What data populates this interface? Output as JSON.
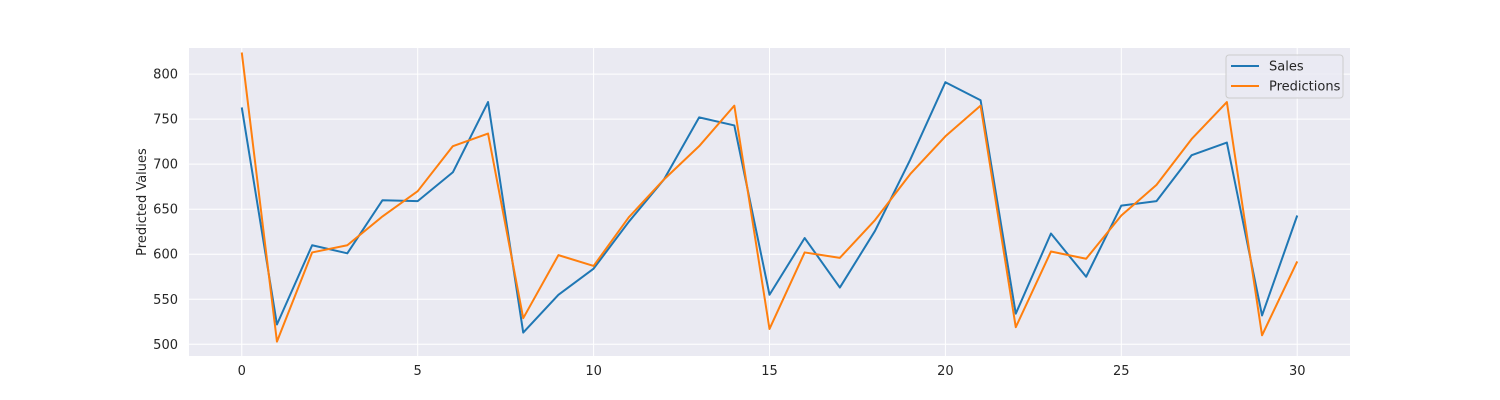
{
  "chart_data": {
    "type": "line",
    "title": "",
    "xlabel": "",
    "ylabel": "Predicted Values",
    "x": [
      0,
      1,
      2,
      3,
      4,
      5,
      6,
      7,
      8,
      9,
      10,
      11,
      12,
      13,
      14,
      15,
      16,
      17,
      18,
      19,
      20,
      21,
      22,
      23,
      24,
      25,
      26,
      27,
      28,
      29,
      30
    ],
    "xlim": [
      -1.5,
      31.5
    ],
    "ylim": [
      487,
      829
    ],
    "xticks": [
      0,
      5,
      10,
      15,
      20,
      25,
      30
    ],
    "yticks": [
      500,
      550,
      600,
      650,
      700,
      750,
      800
    ],
    "grid": true,
    "legend_position": "top-right",
    "series": [
      {
        "name": "Sales",
        "color": "#1f77b4",
        "values": [
          763,
          522,
          610,
          601,
          660,
          659,
          691,
          769,
          513,
          555,
          584,
          636,
          683,
          752,
          743,
          555,
          618,
          563,
          626,
          705,
          791,
          771,
          534,
          623,
          575,
          654,
          659,
          710,
          724,
          532,
          643
        ]
      },
      {
        "name": "Predictions",
        "color": "#ff7f0e",
        "values": [
          824,
          503,
          602,
          610,
          642,
          670,
          720,
          734,
          529,
          599,
          587,
          641,
          683,
          720,
          765,
          517,
          602,
          596,
          638,
          689,
          731,
          765,
          519,
          603,
          595,
          643,
          677,
          728,
          769,
          510,
          592
        ]
      }
    ]
  },
  "colors": {
    "plot_background": "#eaeaf2",
    "grid": "#ffffff",
    "text": "#262626"
  }
}
